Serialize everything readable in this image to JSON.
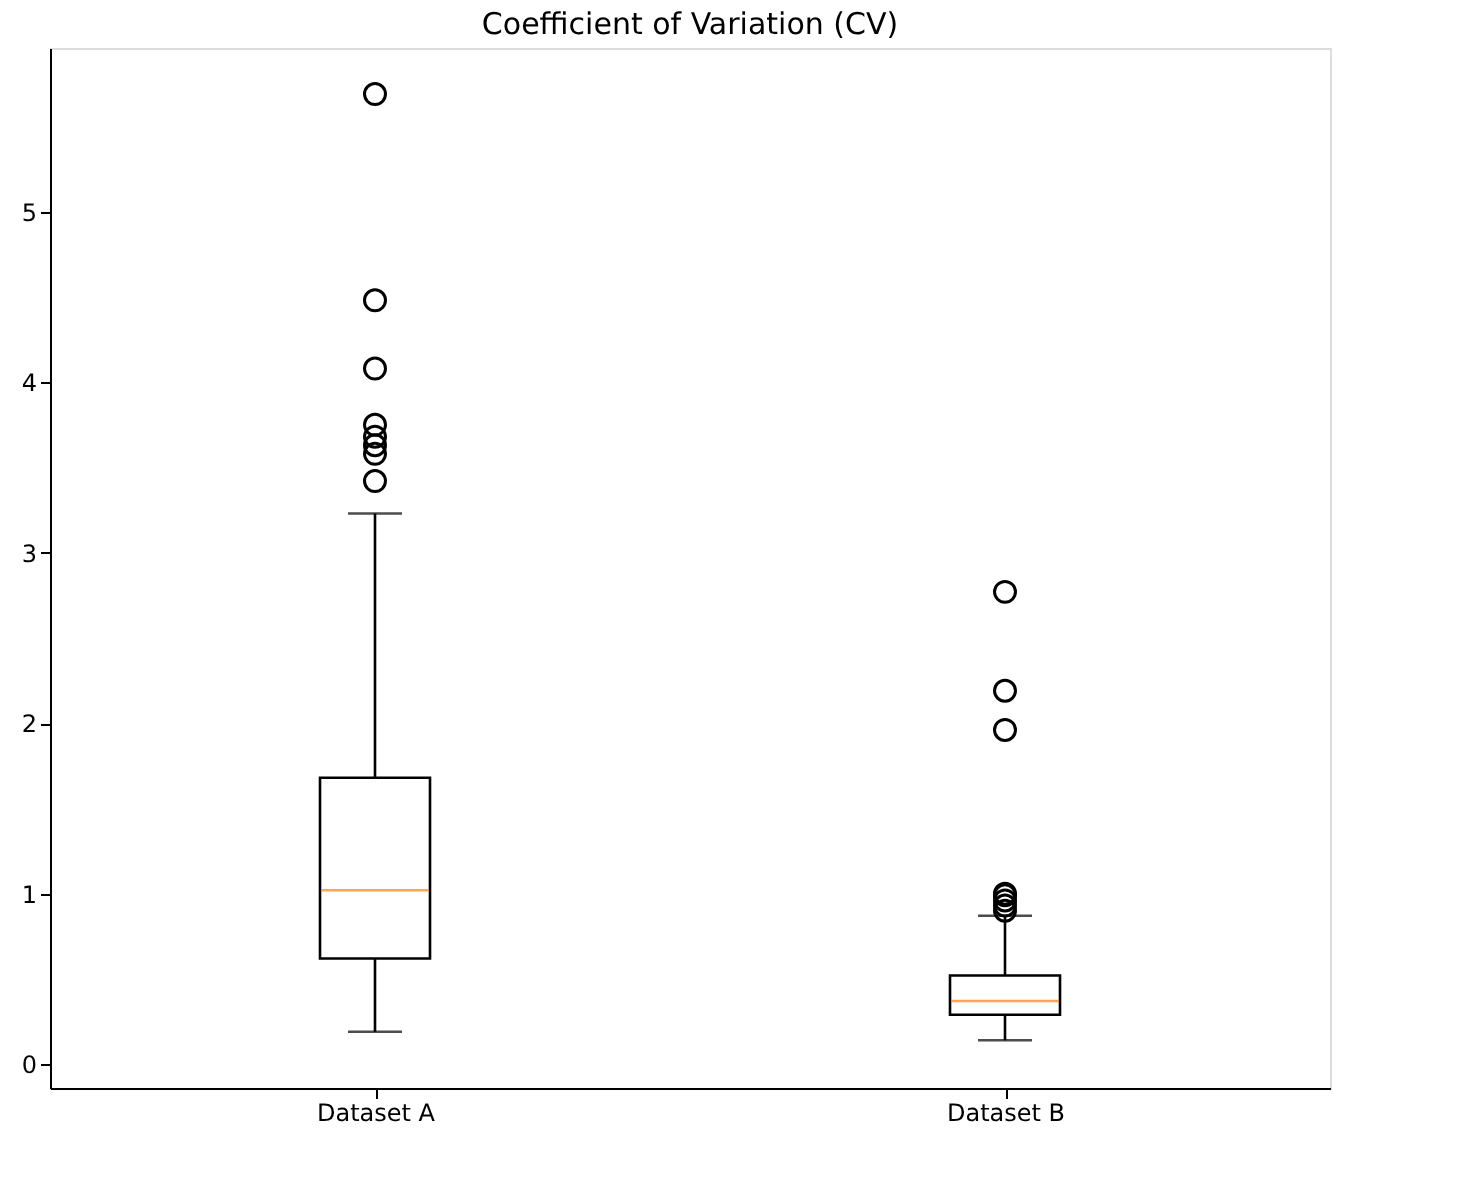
{
  "chart_data": {
    "type": "box",
    "title": "Coefficient of Variation (CV)",
    "categories": [
      "Dataset A",
      "Dataset B"
    ],
    "boxes": [
      {
        "low": 0.19,
        "q1": 0.62,
        "median": 1.02,
        "q3": 1.68,
        "high": 3.23,
        "outliers": [
          5.69,
          4.48,
          4.08,
          3.75,
          3.68,
          3.63,
          3.58,
          3.42
        ]
      },
      {
        "low": 0.14,
        "q1": 0.29,
        "median": 0.37,
        "q3": 0.52,
        "high": 0.87,
        "outliers": [
          2.77,
          2.19,
          1.96,
          1.0,
          0.99,
          0.96,
          0.93,
          0.9
        ]
      }
    ],
    "color": "#000000",
    "ylim": [
      -0.14,
      5.96
    ],
    "yticks": [
      0,
      1,
      2,
      3,
      4,
      5
    ],
    "grid": false
  }
}
